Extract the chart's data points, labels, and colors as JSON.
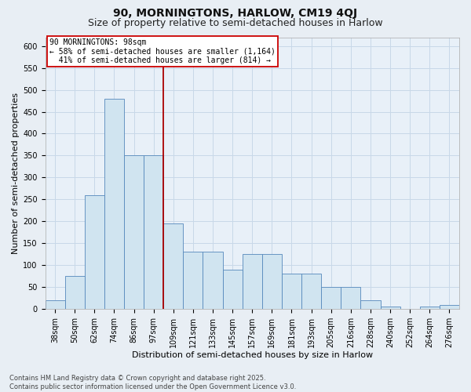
{
  "title1": "90, MORNINGTONS, HARLOW, CM19 4QJ",
  "title2": "Size of property relative to semi-detached houses in Harlow",
  "xlabel": "Distribution of semi-detached houses by size in Harlow",
  "ylabel": "Number of semi-detached properties",
  "categories": [
    "38sqm",
    "50sqm",
    "62sqm",
    "74sqm",
    "86sqm",
    "97sqm",
    "109sqm",
    "121sqm",
    "133sqm",
    "145sqm",
    "157sqm",
    "169sqm",
    "181sqm",
    "193sqm",
    "205sqm",
    "216sqm",
    "228sqm",
    "240sqm",
    "252sqm",
    "264sqm",
    "276sqm"
  ],
  "values": [
    20,
    75,
    260,
    480,
    350,
    350,
    195,
    130,
    130,
    90,
    125,
    125,
    80,
    80,
    50,
    50,
    20,
    5,
    0,
    5,
    10
  ],
  "bar_color": "#d0e4f0",
  "bar_edge_color": "#5588bb",
  "background_color": "#e8f0f8",
  "fig_background_color": "#e8eef4",
  "grid_color": "#c8d8e8",
  "annotation_line1": "90 MORNINGTONS: 98sqm",
  "annotation_line2": "← 58% of semi-detached houses are smaller (1,164)",
  "annotation_line3": "  41% of semi-detached houses are larger (814) →",
  "vline_index": 5,
  "vline_color": "#aa0000",
  "annotation_box_color": "#cc0000",
  "ylim": [
    0,
    620
  ],
  "yticks": [
    0,
    50,
    100,
    150,
    200,
    250,
    300,
    350,
    400,
    450,
    500,
    550,
    600
  ],
  "footer": "Contains HM Land Registry data © Crown copyright and database right 2025.\nContains public sector information licensed under the Open Government Licence v3.0.",
  "title_fontsize": 10,
  "subtitle_fontsize": 9,
  "axis_label_fontsize": 8,
  "tick_fontsize": 7,
  "annotation_fontsize": 7,
  "footer_fontsize": 6
}
